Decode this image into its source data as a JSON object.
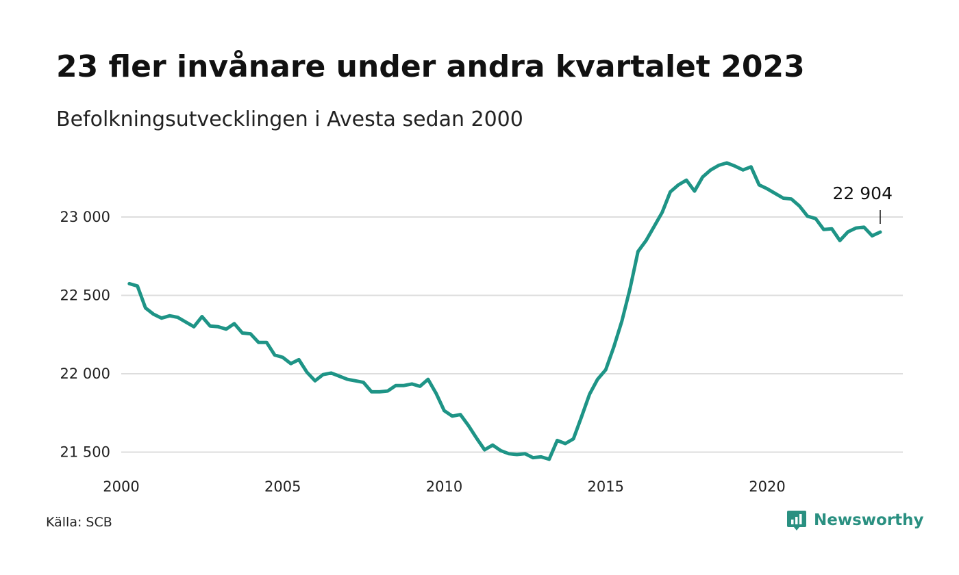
{
  "header": {
    "title": "23 fler invånare under andra kvartalet 2023",
    "subtitle": "Befolkningsutvecklingen i Avesta sedan 2000"
  },
  "footer": {
    "source": "Källa: SCB",
    "brand": "Newsworthy",
    "brand_icon": "bar-chart-icon"
  },
  "colors": {
    "line": "#1e9486",
    "grid": "#dddddd",
    "brand": "#2a9081"
  },
  "chart_data": {
    "type": "line",
    "title": "23 fler invånare under andra kvartalet 2023",
    "subtitle": "Befolkningsutvecklingen i Avesta sedan 2000",
    "xlabel": "",
    "ylabel": "",
    "xlim": [
      2000,
      2024.2
    ],
    "ylim": [
      21450,
      23380
    ],
    "x_ticks": [
      2000,
      2005,
      2010,
      2015,
      2020
    ],
    "x_tick_labels": [
      "2000",
      "2005",
      "2010",
      "2015",
      "2020"
    ],
    "y_ticks": [
      21500,
      22000,
      22500,
      23000
    ],
    "y_tick_labels": [
      "21 500",
      "22 000",
      "22 500",
      "23 000"
    ],
    "grid": "horizontal",
    "legend": "none",
    "annotation": {
      "x": 2023.5,
      "y": 22904,
      "label": "22 904"
    },
    "series": [
      {
        "x": [
          2000.25,
          2000.5,
          2000.75,
          2001.0,
          2001.25,
          2001.5,
          2001.75,
          2002.0,
          2002.25,
          2002.5,
          2002.75,
          2003.0,
          2003.25,
          2003.5,
          2003.75,
          2004.0,
          2004.25,
          2004.5,
          2004.75,
          2005.0,
          2005.25,
          2005.5,
          2005.75,
          2006.0,
          2006.25,
          2006.5,
          2006.75,
          2007.0,
          2007.25,
          2007.5,
          2007.75,
          2008.0,
          2008.25,
          2008.5,
          2008.75,
          2009.0,
          2009.25,
          2009.5,
          2009.75,
          2010.0,
          2010.25,
          2010.5,
          2010.75,
          2011.0,
          2011.25,
          2011.5,
          2011.75,
          2012.0,
          2012.25,
          2012.5,
          2012.75,
          2013.0,
          2013.25,
          2013.5,
          2013.75,
          2014.0,
          2014.25,
          2014.5,
          2014.75,
          2015.0,
          2015.25,
          2015.5,
          2015.75,
          2016.0,
          2016.25,
          2016.5,
          2016.75,
          2017.0,
          2017.25,
          2017.5,
          2017.75,
          2018.0,
          2018.25,
          2018.5,
          2018.75,
          2019.0,
          2019.25,
          2019.5,
          2019.75,
          2020.0,
          2020.25,
          2020.5,
          2020.75,
          2021.0,
          2021.25,
          2021.5,
          2021.75,
          2022.0,
          2022.25,
          2022.5,
          2022.75,
          2023.0,
          2023.25,
          2023.5
        ],
        "y": [
          22575,
          22560,
          22420,
          22380,
          22355,
          22370,
          22360,
          22330,
          22300,
          22365,
          22305,
          22300,
          22285,
          22320,
          22260,
          22255,
          22200,
          22200,
          22120,
          22105,
          22065,
          22090,
          22010,
          21955,
          21995,
          22005,
          21985,
          21965,
          21955,
          21945,
          21885,
          21885,
          21890,
          21925,
          21925,
          21935,
          21920,
          21965,
          21875,
          21765,
          21730,
          21740,
          21670,
          21590,
          21515,
          21545,
          21510,
          21490,
          21485,
          21490,
          21465,
          21470,
          21455,
          21575,
          21555,
          21585,
          21725,
          21870,
          21965,
          22025,
          22170,
          22335,
          22540,
          22780,
          22850,
          22940,
          23030,
          23160,
          23205,
          23235,
          23165,
          23255,
          23300,
          23330,
          23345,
          23325,
          23300,
          23320,
          23205,
          23180,
          23150,
          23120,
          23115,
          23070,
          23005,
          22990,
          22920,
          22925,
          22850,
          22905,
          22930,
          22935,
          22880,
          22904
        ]
      }
    ]
  }
}
